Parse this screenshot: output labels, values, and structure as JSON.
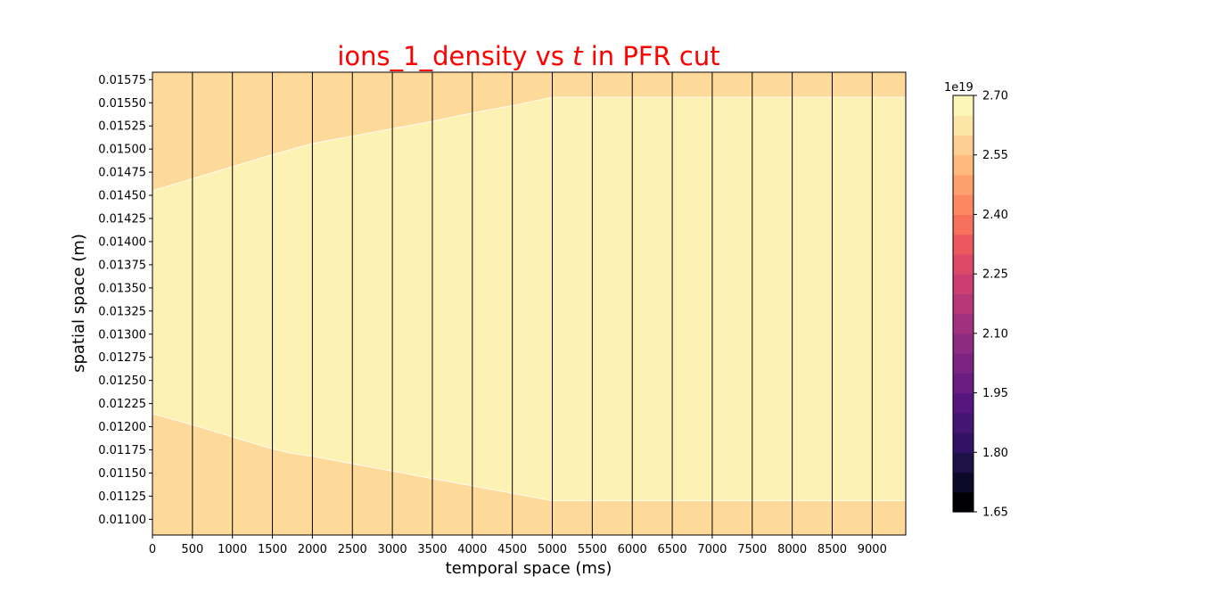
{
  "chart_data": {
    "type": "heatmap",
    "title": {
      "prefix": "ions_1_density vs ",
      "italic": "t",
      "suffix": " in PFR cut"
    },
    "title_color": "#ff0000",
    "xlabel": "temporal space (ms)",
    "ylabel": "spatial space (m)",
    "xlim": [
      0,
      9420
    ],
    "ylim": [
      0.01083,
      0.01583
    ],
    "x_ticks": [
      0,
      500,
      1000,
      1500,
      2000,
      2500,
      3000,
      3500,
      4000,
      4500,
      5000,
      5500,
      6000,
      6500,
      7000,
      7500,
      8000,
      8500,
      9000
    ],
    "x_tick_labels": [
      "0",
      "500",
      "1000",
      "1500",
      "2000",
      "2500",
      "3000",
      "3500",
      "4000",
      "4500",
      "5000",
      "5500",
      "6000",
      "6500",
      "7000",
      "7500",
      "8000",
      "8500",
      "9000"
    ],
    "y_ticks": [
      0.011,
      0.01125,
      0.0115,
      0.01175,
      0.012,
      0.01225,
      0.0125,
      0.01275,
      0.013,
      0.01325,
      0.0135,
      0.01375,
      0.014,
      0.01425,
      0.0145,
      0.01475,
      0.015,
      0.01525,
      0.0155,
      0.01575
    ],
    "y_tick_labels": [
      "0.01100",
      "0.01125",
      "0.01150",
      "0.01175",
      "0.01200",
      "0.01225",
      "0.01250",
      "0.01275",
      "0.01300",
      "0.01325",
      "0.01350",
      "0.01375",
      "0.01400",
      "0.01425",
      "0.01450",
      "0.01475",
      "0.01500",
      "0.01525",
      "0.01550",
      "0.01575"
    ],
    "vertical_lines": [
      500,
      1000,
      1500,
      2000,
      2500,
      3000,
      3500,
      4000,
      4500,
      5000,
      5500,
      6000,
      6500,
      7000,
      7500,
      8000,
      8500,
      9000
    ],
    "background_color": "#feda9a",
    "region": {
      "color": "#fcf2b3",
      "upper_boundary": [
        [
          0,
          0.01455
        ],
        [
          500,
          0.01468
        ],
        [
          1000,
          0.01481
        ],
        [
          1500,
          0.01494
        ],
        [
          1750,
          0.015
        ],
        [
          2000,
          0.01506
        ],
        [
          2500,
          0.01514
        ],
        [
          3000,
          0.01522
        ],
        [
          3500,
          0.0153
        ],
        [
          4000,
          0.01539
        ],
        [
          4500,
          0.01547
        ],
        [
          5000,
          0.01556
        ],
        [
          9420,
          0.01556
        ]
      ],
      "lower_boundary": [
        [
          0,
          0.01214
        ],
        [
          500,
          0.01202
        ],
        [
          1000,
          0.01189
        ],
        [
          1500,
          0.01176
        ],
        [
          1750,
          0.01171
        ],
        [
          2000,
          0.01168
        ],
        [
          2500,
          0.0116
        ],
        [
          3000,
          0.01152
        ],
        [
          3500,
          0.01144
        ],
        [
          4000,
          0.01136
        ],
        [
          4500,
          0.01128
        ],
        [
          5000,
          0.0112
        ],
        [
          9420,
          0.0112
        ]
      ]
    },
    "colorbar": {
      "multiplier": "1e19",
      "min": 1.65,
      "max": 2.7,
      "ticks": [
        1.65,
        1.8,
        1.95,
        2.1,
        2.25,
        2.4,
        2.55,
        2.7
      ],
      "tick_labels": [
        "1.65",
        "1.80",
        "1.95",
        "2.10",
        "2.25",
        "2.40",
        "2.55",
        "2.70"
      ],
      "levels": [
        1.65,
        1.7,
        1.75,
        1.8,
        1.85,
        1.9,
        1.95,
        2.0,
        2.05,
        2.1,
        2.15,
        2.2,
        2.25,
        2.3,
        2.35,
        2.4,
        2.45,
        2.5,
        2.55,
        2.6,
        2.65,
        2.7
      ],
      "colors": [
        "#000004",
        "#0d0a29",
        "#1e1148",
        "#311265",
        "#451574",
        "#57157e",
        "#6a1c81",
        "#7c2382",
        "#8f2a81",
        "#a3307e",
        "#b73779",
        "#cb3e72",
        "#dd4969",
        "#ec5860",
        "#f6705c",
        "#fb8861",
        "#fea06d",
        "#feb87c",
        "#fecf92",
        "#fde5a8",
        "#fcf6b7"
      ]
    }
  }
}
